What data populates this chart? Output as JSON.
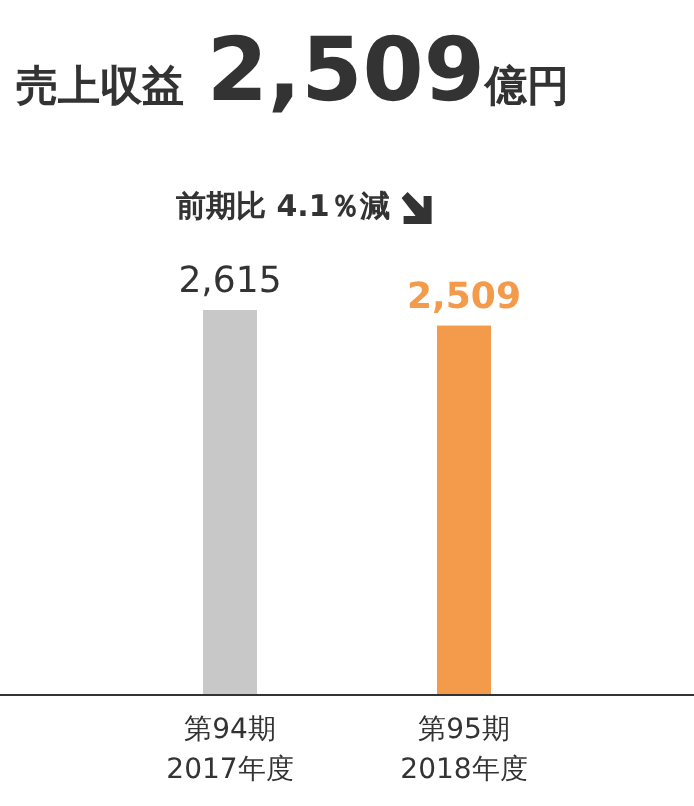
{
  "chart_data": {
    "type": "bar",
    "title": "売上収益 **2,509**億円",
    "subtitle": "前期比 4.1％減",
    "categories": [
      "第94期\n2017年度",
      "第95期\n2018年度"
    ],
    "values": [
      2615,
      2509
    ],
    "colors": [
      "#c8c8c8",
      "#f39a4b"
    ],
    "relative": false,
    "value_labels": [
      "2,615",
      "2,509"
    ]
  }
}
